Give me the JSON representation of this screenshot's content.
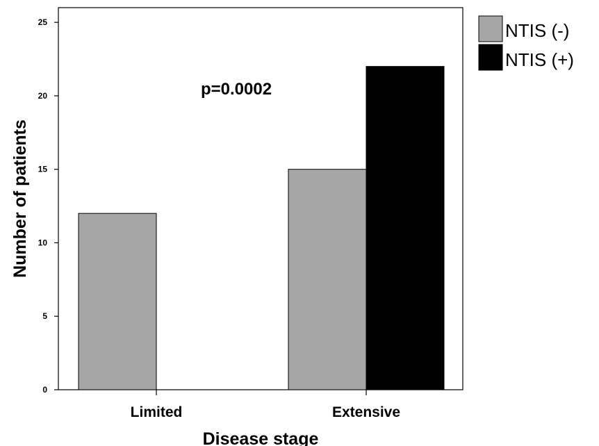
{
  "chart_data": {
    "type": "bar",
    "categories": [
      "Limited",
      "Extensive"
    ],
    "series": [
      {
        "name": "NTIS (-)",
        "values": [
          12,
          15
        ],
        "color": "#a6a6a6"
      },
      {
        "name": "NTIS (+)",
        "values": [
          0,
          22
        ],
        "color": "#000000"
      }
    ],
    "xlabel": "Disease stage",
    "ylabel": "Number of patients",
    "ylim": [
      0,
      26
    ],
    "yticks": [
      0,
      5,
      10,
      15,
      20,
      25
    ],
    "annotation": "p=0.0002",
    "legend_position": "outside-top-right",
    "grid": false
  }
}
